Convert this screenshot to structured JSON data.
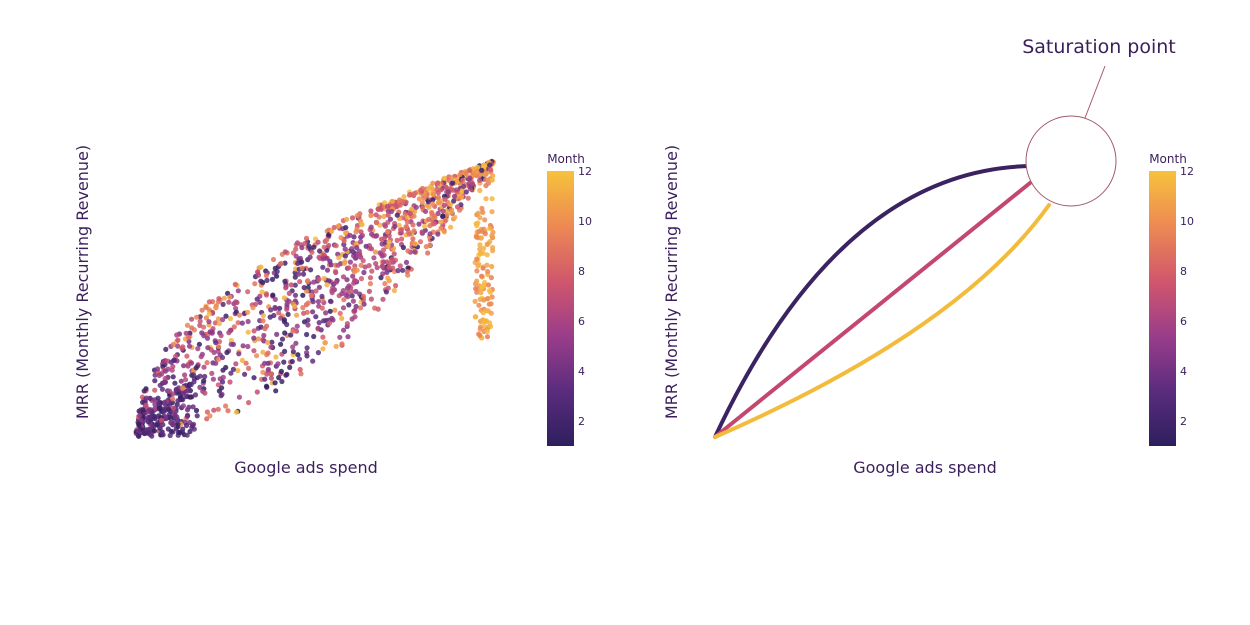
{
  "chart_data": [
    {
      "type": "scatter",
      "xlabel": "Google ads spend",
      "ylabel": "MRR (Monthly Recurring Revenue)",
      "color_variable": "Month",
      "colorbar": {
        "title": "Month",
        "range": [
          1,
          12
        ],
        "ticks": [
          2,
          4,
          6,
          8,
          10,
          12
        ]
      },
      "colorscale": [
        "#2e1f5e",
        "#5b2c7e",
        "#9a3d8a",
        "#d0576c",
        "#ed8953",
        "#f7c23c"
      ],
      "axes_visible": false,
      "grid": false,
      "point_count": 1500,
      "description_of_data": "Each month's points fan out from origin; early months (dark) concentrate near the lower-left and upper-left edge, late months (yellow) concentrate near the lower-right and upper-right edge, forming a leaf-shaped envelope between a concave upper boundary and a convex lower boundary."
    },
    {
      "type": "line",
      "xlabel": "Google ads spend",
      "ylabel": "MRR (Monthly Recurring Revenue)",
      "colorbar": {
        "title": "Month",
        "range": [
          1,
          12
        ],
        "ticks": [
          2,
          4,
          6,
          8,
          10,
          12
        ]
      },
      "axes_visible": false,
      "grid": false,
      "series": [
        {
          "month": 1,
          "color": "#3b2261",
          "shape": "concave"
        },
        {
          "month": 6,
          "color": "#c4476f",
          "shape": "linear"
        },
        {
          "month": 12,
          "color": "#f3bb3b",
          "shape": "convex"
        }
      ],
      "annotation": {
        "text": "Saturation point"
      }
    }
  ]
}
